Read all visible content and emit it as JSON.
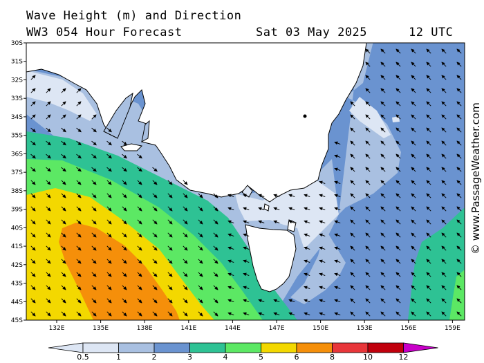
{
  "header": {
    "title": "Wave Height (m) and Direction",
    "subtitle": "WW3 054 Hour Forecast",
    "date": "Sat 03 May 2025",
    "time": "12 UTC"
  },
  "credit": "© www.PassageWeather.com",
  "axes": {
    "lat_labels": [
      "30S",
      "31S",
      "32S",
      "33S",
      "34S",
      "35S",
      "36S",
      "37S",
      "38S",
      "39S",
      "40S",
      "41S",
      "42S",
      "43S",
      "44S",
      "45S"
    ],
    "lon_labels": [
      "132E",
      "135E",
      "138E",
      "141E",
      "144E",
      "147E",
      "150E",
      "153E",
      "156E",
      "159E"
    ]
  },
  "legend": {
    "values": [
      "0.5",
      "1",
      "2",
      "3",
      "4",
      "5",
      "6",
      "8",
      "10",
      "12"
    ],
    "colors": [
      "#dde6f4",
      "#a9c0e1",
      "#6a93d0",
      "#2ec294",
      "#5ce864",
      "#f3d800",
      "#f58f0a",
      "#e8363a",
      "#c0000c",
      "#c800c8"
    ]
  },
  "colors": {
    "land": "#ffffff",
    "zone_0_5_1": "#dde6f4",
    "zone_1_2": "#a9c0e1",
    "zone_2_3": "#6a93d0",
    "zone_3_4": "#2ec294",
    "zone_4_5": "#5ce864",
    "zone_5_6": "#f3d800",
    "zone_6_8": "#f58f0a"
  }
}
